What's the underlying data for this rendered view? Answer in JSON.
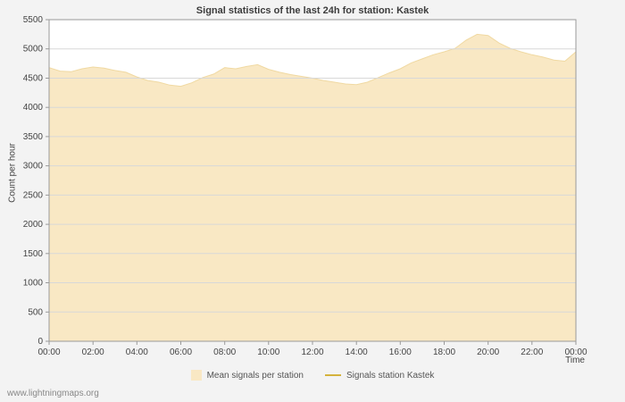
{
  "page": {
    "title": "Signal statistics of the last 24h for station: Kastek"
  },
  "chart_data": {
    "type": "area",
    "title": "Signal statistics of the last 24h for station: Kastek",
    "xlabel": "Time",
    "ylabel": "Count per hour",
    "ylim": [
      0,
      5500
    ],
    "xlim_hours": [
      0,
      24
    ],
    "grid": "horizontal",
    "legend_position": "bottom",
    "y_ticks": [
      0,
      500,
      1000,
      1500,
      2000,
      2500,
      3000,
      3500,
      4000,
      4500,
      5000,
      5500
    ],
    "x_ticks": [
      "00:00",
      "02:00",
      "04:00",
      "06:00",
      "08:00",
      "10:00",
      "12:00",
      "14:00",
      "16:00",
      "18:00",
      "20:00",
      "22:00",
      "00:00"
    ],
    "x_hours": [
      0,
      0.5,
      1,
      1.5,
      2,
      2.5,
      3,
      3.5,
      4,
      4.5,
      5,
      5.5,
      6,
      6.5,
      7,
      7.5,
      8,
      8.5,
      9,
      9.5,
      10,
      10.5,
      11,
      11.5,
      12,
      12.5,
      13,
      13.5,
      14,
      14.5,
      15,
      15.5,
      16,
      16.5,
      17,
      17.5,
      18,
      18.5,
      19,
      19.5,
      20,
      20.5,
      21,
      21.5,
      22,
      22.5,
      23,
      23.5,
      24
    ],
    "series": [
      {
        "name": "Mean signals per station",
        "style": "area",
        "color": "#f9e8c4",
        "edge_color": "#f0d9a2",
        "values": [
          4680,
          4620,
          4610,
          4660,
          4690,
          4670,
          4630,
          4600,
          4520,
          4460,
          4430,
          4380,
          4360,
          4420,
          4510,
          4570,
          4680,
          4660,
          4700,
          4730,
          4650,
          4600,
          4560,
          4530,
          4500,
          4460,
          4430,
          4400,
          4390,
          4430,
          4510,
          4590,
          4660,
          4760,
          4830,
          4900,
          4950,
          5010,
          5150,
          5250,
          5230,
          5100,
          5010,
          4950,
          4900,
          4860,
          4810,
          4790,
          4950
        ]
      },
      {
        "name": "Signals station Kastek",
        "style": "line",
        "color": "#d4b23c",
        "values": []
      }
    ]
  },
  "legend": {
    "mean_label": "Mean signals per station",
    "station_label": "Signals station Kastek"
  },
  "footer": {
    "watermark": "www.lightningmaps.org"
  },
  "colors": {
    "background": "#f3f3f3",
    "plot_background": "#ffffff",
    "grid": "#d8d8d8",
    "border": "#9a9a9a",
    "tick_text": "#444444",
    "title_text": "#3c3c3c",
    "area_fill": "#f9e8c4",
    "area_edge": "#f0d9a2",
    "station_line": "#d4b23c",
    "watermark_text": "#888888"
  }
}
